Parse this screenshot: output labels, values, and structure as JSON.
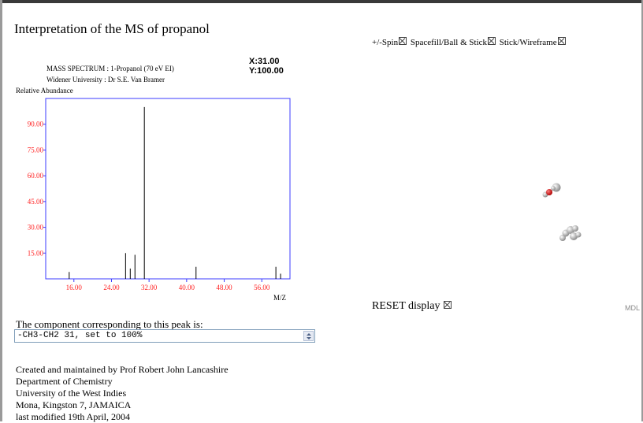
{
  "page": {
    "title": "Interpretation of the MS of propanol"
  },
  "spectrum": {
    "header_line1": "MASS SPECTRUM : 1-Propanol (70 eV EI)",
    "header_line2": "Widener University : Dr S.E. Van Bramer",
    "cursor_x": "X:31.00",
    "cursor_y": "Y:100.00",
    "ylabel": "Relative Abundance",
    "xlabel": "M/Z"
  },
  "chart_data": {
    "type": "bar",
    "title": "MASS SPECTRUM : 1-Propanol (70 eV EI)",
    "xlabel": "M/Z",
    "ylabel": "Relative Abundance",
    "xlim": [
      10,
      62
    ],
    "ylim": [
      0,
      105
    ],
    "xticks": [
      16,
      24,
      32,
      40,
      48,
      56
    ],
    "xtick_labels": [
      "16.00",
      "24.00",
      "32.00",
      "40.00",
      "48.00",
      "56.00"
    ],
    "yticks": [
      15,
      30,
      45,
      60,
      75,
      90
    ],
    "ytick_labels": [
      "15.00",
      "30.00",
      "45.00",
      "60.00",
      "75.00",
      "90.00"
    ],
    "x": [
      15,
      27,
      28,
      29,
      31,
      42,
      59,
      60
    ],
    "values": [
      4,
      15,
      6,
      14,
      100,
      7,
      7,
      3
    ],
    "colors": {
      "plot_border": "#3b3bff",
      "tick_labels": "#ff2020",
      "peaks": "#000000"
    }
  },
  "toolbar": {
    "spin_label": "+/-Spin",
    "spacefill_label": "Spacefill/Ball & Stick",
    "stick_label": "Stick/Wireframe"
  },
  "viewer": {
    "reset_label": "RESET display",
    "mdl_label": "MDL"
  },
  "peak": {
    "prompt": "The component corresponding to this peak is:",
    "selected": "-CH3-CH2 31, set to 100%"
  },
  "credits": {
    "line1": "Created and maintained by Prof Robert John Lancashire",
    "line2": "Department of Chemistry",
    "line3": "University of the West Indies",
    "line4": "Mona, Kingston 7, JAMAICA",
    "line5": "last modified 19th April, 2004"
  }
}
